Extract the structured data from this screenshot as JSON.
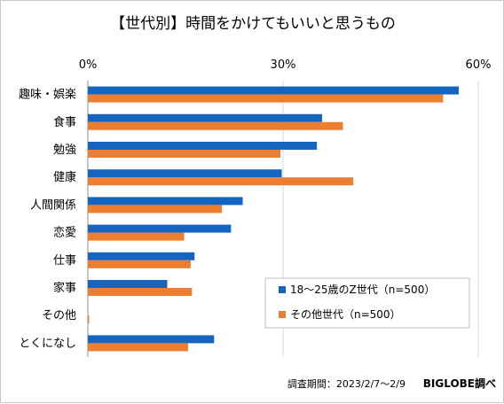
{
  "chart_data": {
    "type": "bar",
    "orientation": "horizontal",
    "title": "【世代別】時間をかけてもいいと思うもの",
    "categories": [
      "趣味・娯楽",
      "食事",
      "勉強",
      "健康",
      "人間関係",
      "恋愛",
      "仕事",
      "家事",
      "その他",
      "とくになし"
    ],
    "series": [
      {
        "name": "18～25歳のZ世代（n=500）",
        "color": "#1565c0",
        "values": [
          57.0,
          36.0,
          35.2,
          29.8,
          23.8,
          22.0,
          16.4,
          12.2,
          0.0,
          19.4
        ]
      },
      {
        "name": "その他世代（n=500）",
        "color": "#ed7d31",
        "values": [
          54.6,
          39.2,
          29.6,
          40.8,
          20.6,
          14.8,
          15.8,
          16.0,
          0.2,
          15.4
        ]
      }
    ],
    "xlim": [
      0,
      60
    ],
    "ticks": [
      0,
      30,
      60
    ],
    "tick_labels": [
      "0%",
      "30%",
      "60%"
    ],
    "grid": true,
    "legend_position": "bottom-right"
  },
  "footer": {
    "source": "調査期間：2023/2/7～2/9",
    "brand": "BIGLOBE調べ"
  }
}
